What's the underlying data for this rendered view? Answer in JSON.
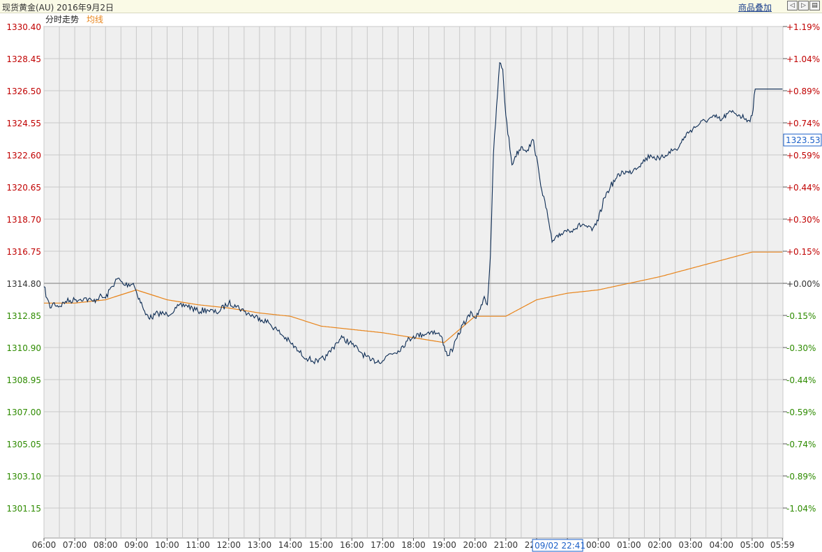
{
  "header": {
    "title": "现货黄金(AU) 2016年9月2日",
    "overlay_button": "商品叠加",
    "tool_icons": [
      "arrow-left-icon",
      "arrow-right-icon",
      "window-icon"
    ]
  },
  "colors": {
    "background": "#efefef",
    "grid": "#c8c8c8",
    "price_line": "#0d2c54",
    "avg_line": "#e8841a",
    "up": "#c00000",
    "down": "#2e8b00",
    "baseline": "#a0a0a0",
    "cursor": "#1a5fc8"
  },
  "chart_data": {
    "type": "line",
    "legend": [
      "分时走势",
      "均线"
    ],
    "prev_close": 1314.8,
    "y_ticks": [
      "1330.40",
      "1328.45",
      "1326.50",
      "1324.55",
      "1322.60",
      "1320.65",
      "1318.70",
      "1316.75",
      "1314.80",
      "1312.85",
      "1310.90",
      "1308.95",
      "1307.00",
      "1305.05",
      "1303.10",
      "1301.15"
    ],
    "y_pct_ticks": [
      "+1.19%",
      "+1.04%",
      "+0.89%",
      "+0.74%",
      "+0.59%",
      "+0.44%",
      "+0.30%",
      "+0.15%",
      "+0.00%",
      "-0.15%",
      "-0.30%",
      "-0.44%",
      "-0.59%",
      "-0.74%",
      "-0.89%",
      "-1.04%"
    ],
    "ylim": [
      1299.5,
      1331.0
    ],
    "x_ticks": [
      "06:00",
      "07:00",
      "08:00",
      "09:00",
      "10:00",
      "11:00",
      "12:00",
      "13:00",
      "14:00",
      "15:00",
      "16:00",
      "17:00",
      "18:00",
      "19:00",
      "20:00",
      "21:00",
      "22:00",
      "23:00",
      "00:00",
      "01:00",
      "02:00",
      "03:00",
      "04:00",
      "05:00",
      "05:59"
    ],
    "x_tick_hours": [
      0,
      1,
      2,
      3,
      4,
      5,
      6,
      7,
      8,
      9,
      10,
      11,
      12,
      13,
      14,
      15,
      16,
      17,
      18,
      19,
      20,
      21,
      22,
      23,
      23.983
    ],
    "x_range_hours": [
      0,
      24
    ],
    "current_price": "1323.53",
    "cursor_label": "09/02 22:41",
    "cursor_hour": 16.683,
    "series": [
      {
        "name": "分时走势",
        "x": [
          0,
          0.1,
          0.2,
          0.3,
          0.5,
          0.7,
          1,
          1.3,
          1.6,
          1.8,
          2,
          2.2,
          2.4,
          2.6,
          2.9,
          3,
          3.2,
          3.3,
          3.5,
          3.7,
          4,
          4.3,
          4.6,
          5,
          5.3,
          5.6,
          6,
          6.2,
          6.5,
          6.8,
          7,
          7.3,
          7.6,
          8,
          8.3,
          8.6,
          8.9,
          9.2,
          9.5,
          9.7,
          10,
          10.3,
          10.6,
          11,
          11.2,
          11.5,
          11.8,
          12,
          12.3,
          12.6,
          12.9,
          13,
          13.1,
          13.3,
          13.6,
          13.9,
          14,
          14.1,
          14.2,
          14.3,
          14.4,
          14.5,
          14.6,
          14.8,
          14.9,
          15,
          15.2,
          15.3,
          15.5,
          15.7,
          15.9,
          16.1,
          16.3,
          16.4,
          16.5,
          16.7,
          16.9,
          17.2,
          17.5,
          17.8,
          18,
          18.2,
          18.4,
          18.6,
          18.8,
          19,
          19.2,
          19.4,
          19.7,
          20,
          20.3,
          20.6,
          20.8,
          21,
          21.3,
          21.6,
          21.8,
          22,
          22.2,
          22.4,
          22.6,
          22.8,
          22.9,
          23,
          23.1,
          23.985
        ],
        "values": [
          1314.6,
          1313.9,
          1313.3,
          1313.6,
          1313.4,
          1313.7,
          1313.8,
          1313.9,
          1313.7,
          1314.0,
          1313.9,
          1314.6,
          1315.1,
          1314.7,
          1314.8,
          1314.3,
          1313.4,
          1312.9,
          1312.7,
          1313.0,
          1312.9,
          1313.3,
          1313.5,
          1313.1,
          1313.2,
          1313.0,
          1313.6,
          1313.5,
          1313.1,
          1312.8,
          1312.7,
          1312.4,
          1311.9,
          1311.2,
          1310.6,
          1310.2,
          1310.0,
          1310.4,
          1311.2,
          1311.5,
          1311.1,
          1310.6,
          1310.1,
          1310.1,
          1310.5,
          1310.7,
          1311.3,
          1311.6,
          1311.7,
          1311.9,
          1311.6,
          1311.0,
          1310.4,
          1310.9,
          1312.3,
          1313.0,
          1312.7,
          1312.9,
          1313.5,
          1314.0,
          1313.5,
          1316.5,
          1322.7,
          1328.2,
          1327.8,
          1325.0,
          1322.0,
          1322.5,
          1323.1,
          1322.9,
          1323.5,
          1321.2,
          1319.4,
          1318.5,
          1317.3,
          1317.6,
          1318.0,
          1318.1,
          1318.4,
          1318.0,
          1318.6,
          1320.0,
          1320.7,
          1321.2,
          1321.6,
          1321.5,
          1321.8,
          1322.1,
          1322.6,
          1322.3,
          1322.8,
          1323.0,
          1323.7,
          1324.1,
          1324.5,
          1324.8,
          1324.9,
          1324.7,
          1325.1,
          1325.2,
          1325.0,
          1324.8,
          1324.7,
          1325.0,
          1326.6,
          1326.6
        ]
      },
      {
        "name": "均线",
        "x": [
          0,
          1,
          2,
          3,
          4,
          5,
          6,
          7,
          8,
          9,
          10,
          11,
          12,
          13,
          14,
          14.5,
          15,
          16,
          17,
          18,
          19,
          20,
          21,
          22,
          23,
          23.985
        ],
        "values": [
          1313.6,
          1313.6,
          1313.8,
          1314.4,
          1313.8,
          1313.5,
          1313.3,
          1313.0,
          1312.8,
          1312.2,
          1312.0,
          1311.8,
          1311.5,
          1311.2,
          1312.8,
          1312.8,
          1312.8,
          1313.8,
          1314.2,
          1314.4,
          1314.8,
          1315.2,
          1315.7,
          1316.2,
          1316.7,
          1316.7
        ]
      }
    ]
  }
}
